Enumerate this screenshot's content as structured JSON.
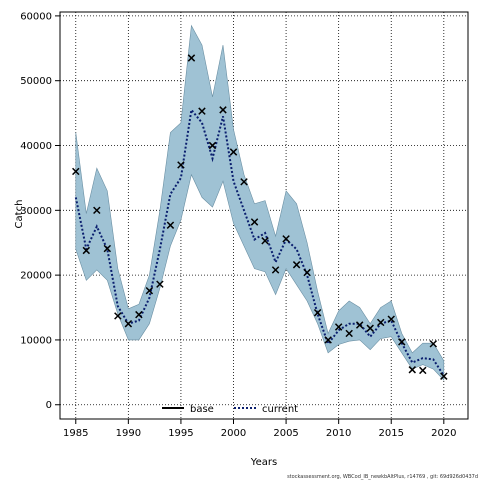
{
  "chart_data": {
    "type": "line",
    "xlabel": "Years",
    "ylabel": "Catch",
    "xlim": [
      1983.5,
      2022.3
    ],
    "ylim": [
      -2200,
      60600
    ],
    "x_ticks": [
      1985,
      1990,
      1995,
      2000,
      2005,
      2010,
      2015,
      2020
    ],
    "y_ticks": [
      0,
      10000,
      20000,
      30000,
      40000,
      50000,
      60000
    ],
    "grid": true,
    "legend_position": "bottom-center",
    "footer": "stockassessment.org, WBCod_IB_newkbAltPlus, r14769 , git: 69d926d0437d",
    "band": {
      "color": "#9fc2d4",
      "edge_color": "#6a8fa3",
      "x": [
        1985,
        1986,
        1987,
        1988,
        1989,
        1990,
        1991,
        1992,
        1993,
        1994,
        1995,
        1996,
        1997,
        1998,
        1999,
        2000,
        2001,
        2002,
        2003,
        2004,
        2005,
        2006,
        2007,
        2008,
        2009,
        2010,
        2011,
        2012,
        2013,
        2014,
        2015,
        2016,
        2017,
        2018,
        2019,
        2020
      ],
      "upper": [
        42000,
        29500,
        36500,
        33000,
        21000,
        14800,
        15500,
        20000,
        30000,
        42000,
        43500,
        58500,
        55500,
        47500,
        55500,
        42500,
        35500,
        31000,
        31500,
        26000,
        33000,
        31000,
        25000,
        17500,
        11000,
        14500,
        16000,
        15000,
        12500,
        15000,
        16000,
        11000,
        8000,
        9500,
        9500,
        6800
      ],
      "lower": [
        24000,
        19200,
        20800,
        19200,
        14000,
        10000,
        10000,
        12500,
        18000,
        24500,
        28500,
        35500,
        32000,
        30500,
        34500,
        28000,
        24500,
        21000,
        20500,
        17000,
        21000,
        18500,
        16000,
        12500,
        8000,
        9300,
        9800,
        10000,
        8500,
        10200,
        10500,
        8000,
        5500,
        6200,
        5500,
        3800
      ]
    },
    "series": [
      {
        "name": "base",
        "style": "solid",
        "color": "#000000",
        "values": []
      },
      {
        "name": "current",
        "style": "dotted",
        "color": "#0a1e6e",
        "values": [
          32000,
          24000,
          27500,
          24000,
          15200,
          12500,
          13000,
          16500,
          24000,
          32500,
          35000,
          45500,
          43500,
          38000,
          44500,
          34500,
          30000,
          25500,
          26500,
          22000,
          25500,
          24000,
          20000,
          14000,
          9400,
          11500,
          12500,
          12500,
          10500,
          12500,
          13000,
          9500,
          6500,
          7200,
          7000,
          4500
        ]
      }
    ],
    "observed": {
      "marker": "x",
      "x": [
        1985,
        1986,
        1987,
        1988,
        1989,
        1990,
        1991,
        1992,
        1993,
        1994,
        1995,
        1996,
        1997,
        1998,
        1999,
        2000,
        2001,
        2002,
        2003,
        2004,
        2005,
        2006,
        2007,
        2008,
        2009,
        2010,
        2011,
        2012,
        2013,
        2014,
        2015,
        2016,
        2017,
        2018,
        2019,
        2020
      ],
      "y": [
        36000,
        23800,
        30000,
        24100,
        13700,
        12500,
        13900,
        17600,
        18600,
        27700,
        37000,
        53500,
        45300,
        40000,
        45500,
        39000,
        34400,
        28200,
        25300,
        20800,
        25600,
        21600,
        20400,
        14200,
        10000,
        12000,
        11000,
        12300,
        11800,
        12700,
        13200,
        9700,
        5400,
        5300,
        9400,
        4400
      ]
    }
  }
}
